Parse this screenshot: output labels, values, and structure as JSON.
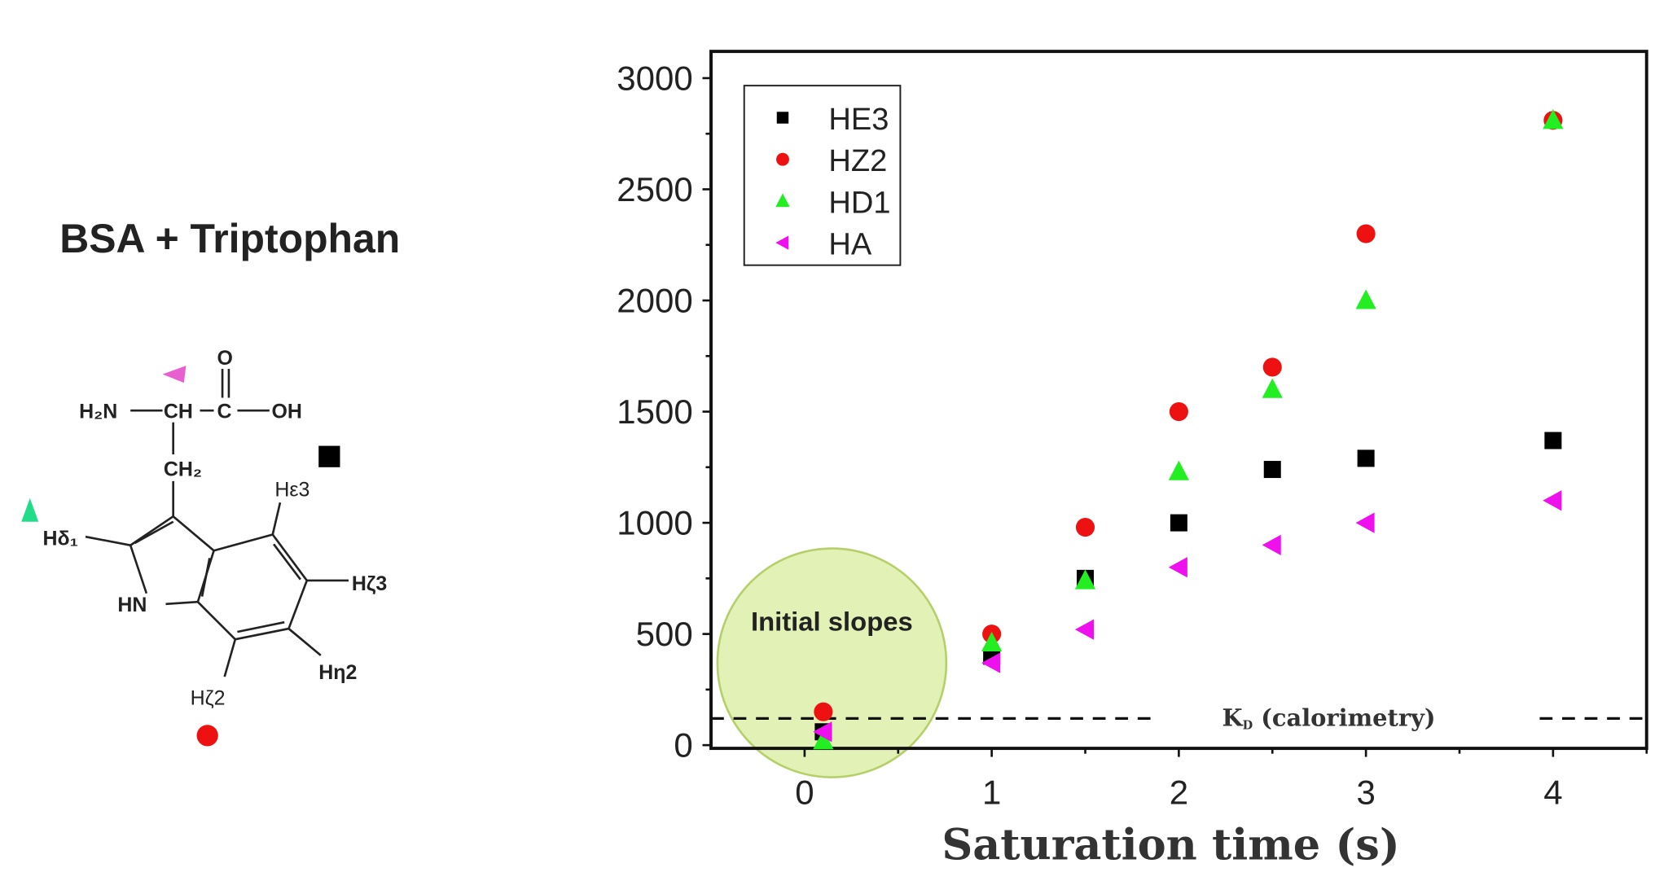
{
  "left_panel": {
    "title": "BSA + Triptophan",
    "molecule_labels": {
      "h2n": "H₂N",
      "ch": "CH",
      "c": "C",
      "o": "O",
      "oh": "OH",
      "ch2": "CH₂",
      "hn": "HN",
      "hd1": "Hδ₁",
      "he3": "Hε3",
      "hz3": "Hζ3",
      "hh2": "Hη2",
      "hz2": "Hζ2"
    }
  },
  "chart_data": {
    "type": "scatter",
    "xlabel": "Saturation time (s)",
    "ylabel": "",
    "xlim": [
      -0.5,
      4.5
    ],
    "ylim": [
      0,
      3000
    ],
    "x_ticks": [
      "0",
      "1",
      "2",
      "3",
      "4"
    ],
    "y_ticks": [
      "0",
      "500",
      "1000",
      "1500",
      "2000",
      "2500",
      "3000"
    ],
    "grid": false,
    "legend_position": "top-left",
    "series": [
      {
        "name": "HE3",
        "marker": "square",
        "color": "#000000",
        "x": [
          0.1,
          1,
          1.5,
          2,
          2.5,
          3,
          4
        ],
        "y": [
          60,
          400,
          750,
          1000,
          1240,
          1290,
          1370
        ]
      },
      {
        "name": "HZ2",
        "marker": "circle",
        "color": "#ee1111",
        "x": [
          0.1,
          1,
          1.5,
          2,
          2.5,
          3,
          4
        ],
        "y": [
          150,
          500,
          980,
          1500,
          1700,
          2300,
          2810
        ]
      },
      {
        "name": "HD1",
        "marker": "triangle-up",
        "color": "#22ee22",
        "x": [
          0.1,
          1,
          1.5,
          2,
          2.5,
          3,
          4
        ],
        "y": [
          20,
          460,
          740,
          1230,
          1600,
          2000,
          2810
        ]
      },
      {
        "name": "HA",
        "marker": "triangle-left",
        "color": "#ee11ee",
        "x": [
          0.1,
          1,
          1.5,
          2,
          2.5,
          3,
          4
        ],
        "y": [
          60,
          370,
          520,
          800,
          900,
          1000,
          1100
        ]
      }
    ],
    "reference_line": {
      "label_main": "K",
      "label_sub": "D",
      "label_rest": " (calorimetry)",
      "y": 120,
      "style": "dashed"
    },
    "annotation": {
      "text": "Initial slopes",
      "highlight_color": "#d8ec9c"
    }
  }
}
